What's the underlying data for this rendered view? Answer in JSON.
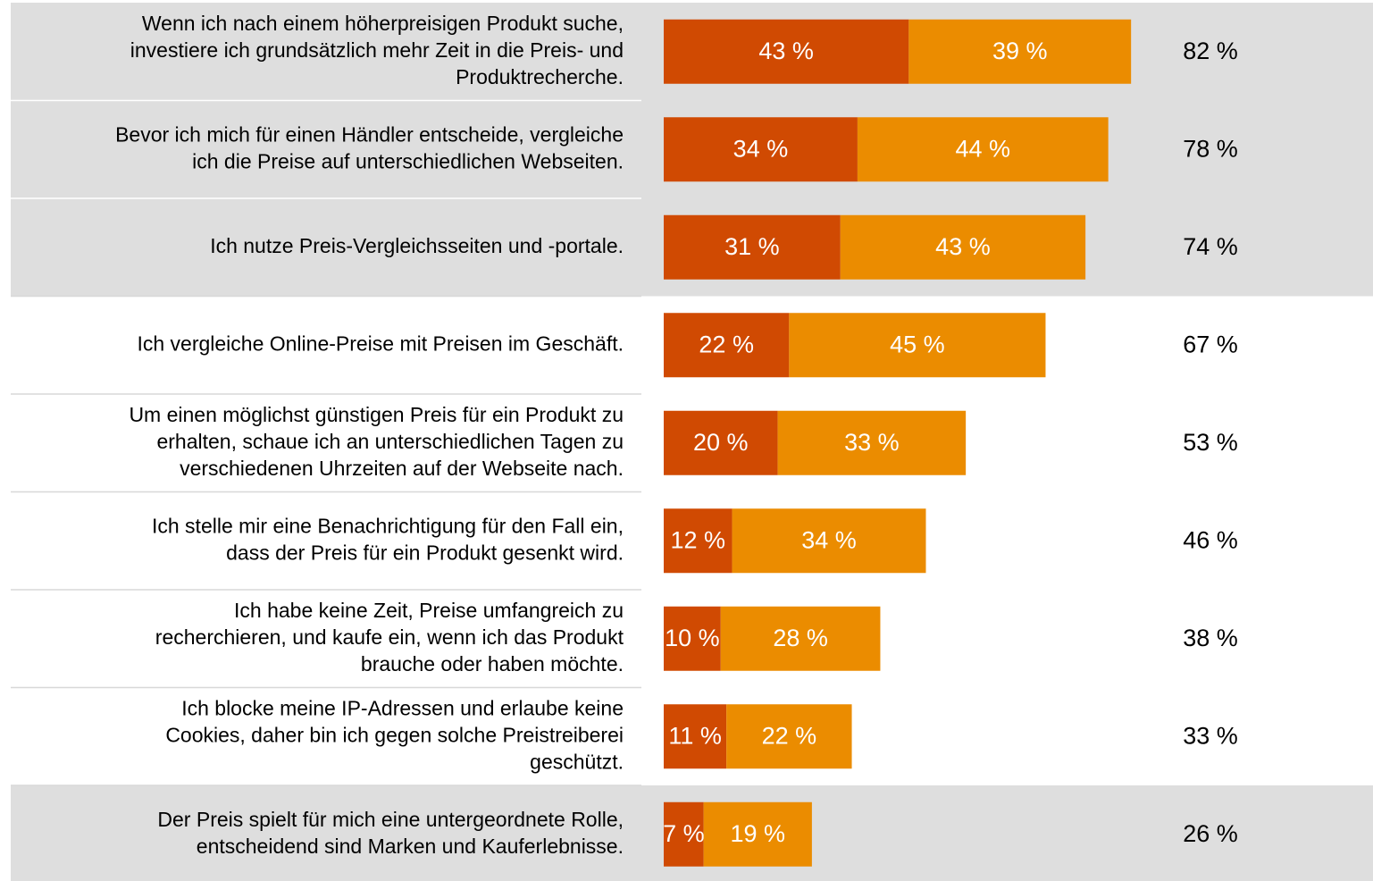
{
  "chart_data": {
    "type": "stacked_bar_horizontal",
    "categories": [
      [
        "Wenn ich nach einem höherpreisigen Produkt suche,",
        "investiere ich grundsätzlich mehr Zeit in die Preis- und",
        "Produktrecherche."
      ],
      [
        "Bevor ich mich für einen Händler entscheide, vergleiche",
        "ich die Preise auf unterschiedlichen Webseiten."
      ],
      [
        "Ich nutze Preis-Vergleichsseiten und -portale."
      ],
      [
        "Ich vergleiche Online-Preise mit Preisen im Geschäft."
      ],
      [
        "Um einen möglichst günstigen Preis für ein Produkt zu",
        "erhalten, schaue ich an unterschiedlichen Tagen zu",
        "verschiedenen Uhrzeiten auf der Webseite nach."
      ],
      [
        "Ich stelle mir eine Benachrichtigung für den Fall ein,",
        "dass der Preis für ein Produkt gesenkt wird."
      ],
      [
        "Ich habe keine Zeit, Preise umfangreich zu",
        "recherchieren, und kaufe ein, wenn ich das Produkt",
        "brauche oder haben möchte."
      ],
      [
        "Ich blocke meine IP-Adressen und erlaube keine",
        "Cookies, daher bin ich gegen solche Preistreiberei",
        "geschützt."
      ],
      [
        "Der Preis spielt für mich eine untergeordnete Rolle,",
        "entscheidend sind Marken und Kauferlebnisse."
      ]
    ],
    "series": [
      {
        "color": "#d04a02",
        "values": [
          43,
          34,
          31,
          22,
          20,
          12,
          10,
          11,
          7
        ],
        "value_labels": [
          "43 %",
          "34 %",
          "31 %",
          "22 %",
          "20 %",
          "12 %",
          "10 %",
          "11 %",
          "7 %"
        ]
      },
      {
        "color": "#eb8c00",
        "values": [
          39,
          44,
          43,
          45,
          33,
          34,
          28,
          22,
          19
        ],
        "value_labels": [
          "39 %",
          "44 %",
          "43 %",
          "45 %",
          "33 %",
          "34 %",
          "28 %",
          "22 %",
          "19 %"
        ]
      }
    ],
    "total_labels": [
      "82 %",
      "78 %",
      "74 %",
      "67 %",
      "53 %",
      "46 %",
      "38 %",
      "33 %",
      "26 %"
    ],
    "highlighted_rows": [
      0,
      1,
      2,
      8
    ],
    "highlight_color": "#dedede"
  }
}
